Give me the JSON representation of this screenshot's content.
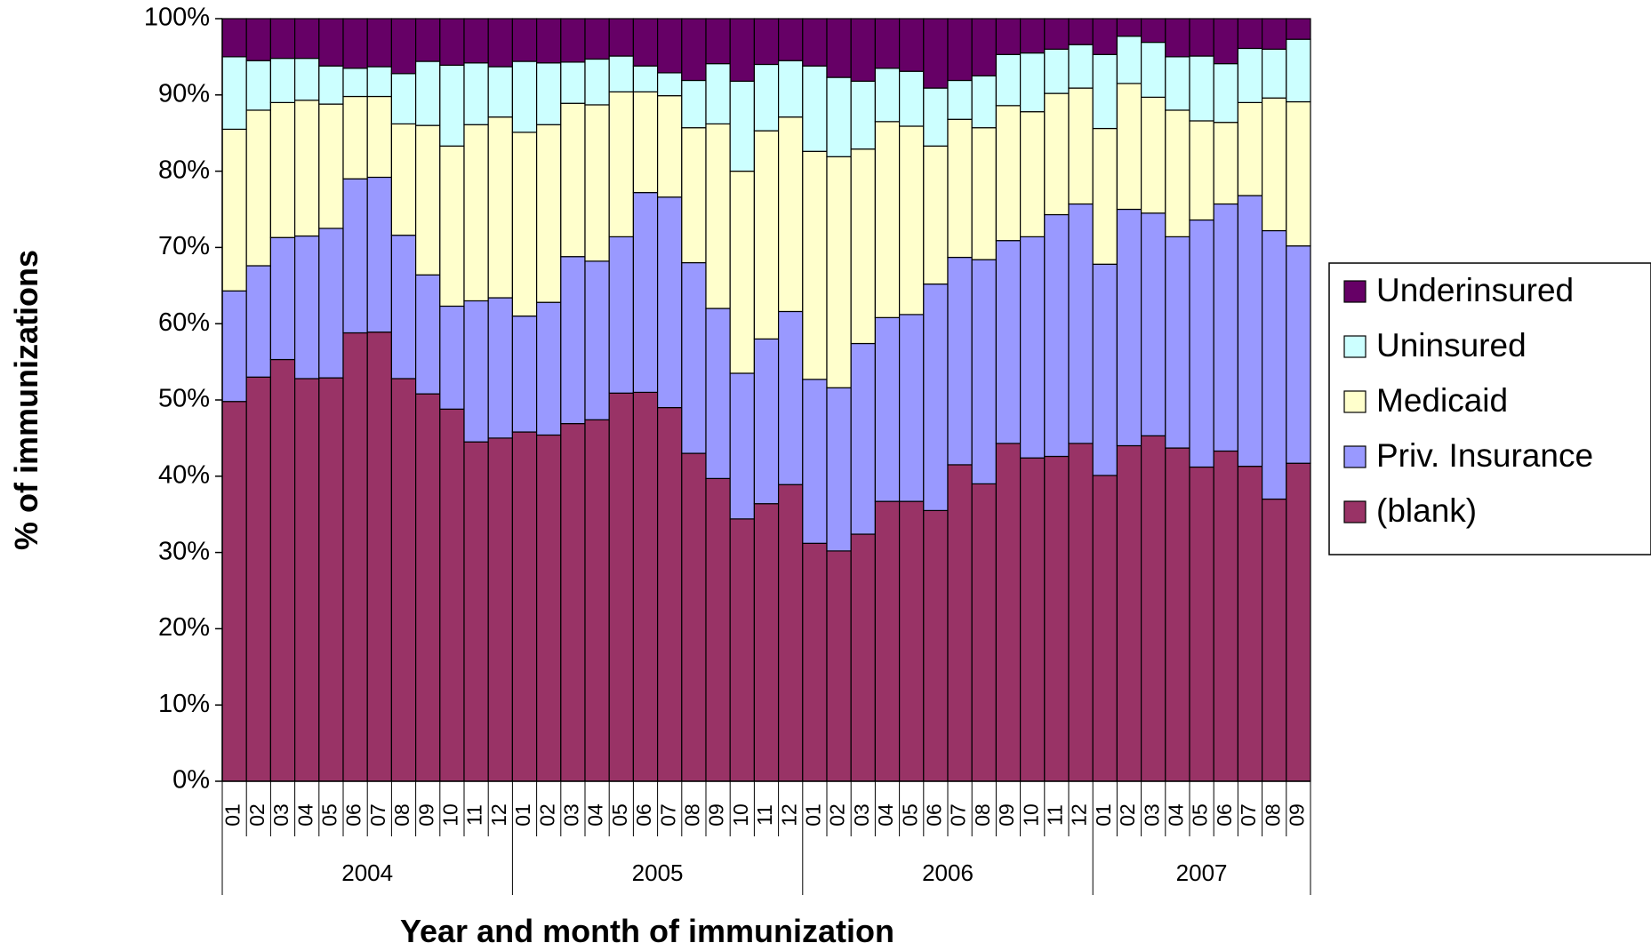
{
  "chart_data": {
    "type": "stacked_bar",
    "y_label": "% of immunizations",
    "x_label": "Year and month of immunization",
    "categories": [
      "01",
      "02",
      "03",
      "04",
      "05",
      "06",
      "07",
      "08",
      "09",
      "10",
      "11",
      "12",
      "01",
      "02",
      "03",
      "04",
      "05",
      "06",
      "07",
      "08",
      "09",
      "10",
      "11",
      "12",
      "01",
      "02",
      "03",
      "04",
      "05",
      "06",
      "07",
      "08",
      "09",
      "10",
      "11",
      "12",
      "01",
      "02",
      "03",
      "04",
      "05",
      "06",
      "07",
      "08",
      "09"
    ],
    "group_labels": [
      "2004",
      "2005",
      "2006",
      "2007"
    ],
    "ylim": [
      0,
      100
    ],
    "yticks": [
      {
        "value": 0,
        "label": "0%"
      },
      {
        "value": 10,
        "label": "10%"
      },
      {
        "value": 20,
        "label": "20%"
      },
      {
        "value": 30,
        "label": "30%"
      },
      {
        "value": 40,
        "label": "40%"
      },
      {
        "value": 50,
        "label": "50%"
      },
      {
        "value": 60,
        "label": "60%"
      },
      {
        "value": 70,
        "label": "70%"
      },
      {
        "value": 80,
        "label": "80%"
      },
      {
        "value": 90,
        "label": "90%"
      },
      {
        "value": 100,
        "label": "100%"
      }
    ],
    "legend_position": "right",
    "series": [
      {
        "name": "(blank)",
        "color": "#993366",
        "values": [
          49.8,
          53,
          55.3,
          52.8,
          52.9,
          58.8,
          58.9,
          52.8,
          50.8,
          48.8,
          44.5,
          45,
          45.8,
          45.4,
          46.9,
          47.4,
          50.9,
          51,
          49,
          43,
          39.7,
          34.4,
          36.4,
          38.9,
          31.2,
          30.2,
          32.4,
          36.7,
          36.7,
          35.5,
          41.5,
          39,
          44.3,
          42.4,
          42.6,
          44.3,
          40.1,
          44,
          45.3,
          43.7,
          41.2,
          43.3,
          41.3,
          37,
          41.7
        ]
      },
      {
        "name": "Priv. Insurance",
        "color": "#9999ff",
        "values": [
          14.5,
          14.6,
          16.0,
          18.7,
          19.6,
          20.2,
          20.3,
          18.8,
          15.6,
          13.5,
          18.5,
          18.4,
          15.2,
          17.4,
          21.9,
          20.8,
          20.5,
          26.2,
          27.6,
          25.0,
          22.3,
          19.1,
          21.6,
          22.7,
          21.5,
          21.4,
          25.0,
          24.1,
          24.5,
          29.7,
          27.2,
          29.4,
          26.6,
          29.0,
          31.7,
          31.4,
          27.7,
          31.0,
          29.2,
          27.7,
          32.4,
          32.4,
          35.5,
          35.2,
          28.5
        ]
      },
      {
        "name": "Medicaid",
        "color": "#ffffcc",
        "values": [
          21.2,
          20.4,
          17.7,
          17.8,
          16.3,
          10.8,
          10.6,
          14.6,
          19.6,
          21.0,
          23.1,
          23.7,
          24.1,
          23.3,
          20.1,
          20.5,
          19.0,
          13.2,
          13.3,
          17.7,
          24.2,
          26.5,
          27.3,
          25.5,
          29.9,
          30.3,
          25.5,
          25.7,
          24.7,
          18.1,
          18.1,
          17.3,
          17.7,
          16.4,
          15.9,
          15.2,
          17.8,
          16.5,
          15.2,
          16.6,
          13.0,
          10.7,
          12.2,
          17.4,
          18.9
        ]
      },
      {
        "name": "Uninsured",
        "color": "#ccffff",
        "values": [
          9.5,
          6.5,
          5.8,
          5.5,
          5.0,
          3.7,
          3.9,
          6.6,
          8.4,
          10.6,
          8.1,
          6.6,
          9.3,
          8.1,
          5.4,
          6.0,
          4.7,
          3.4,
          3.0,
          6.2,
          7.9,
          11.8,
          8.7,
          7.4,
          11.2,
          10.4,
          8.9,
          7.0,
          7.2,
          7.6,
          5.1,
          6.8,
          6.7,
          7.7,
          5.8,
          5.7,
          9.7,
          6.2,
          7.2,
          7.0,
          8.5,
          7.7,
          7.1,
          6.4,
          8.2
        ]
      },
      {
        "name": "Underinsured",
        "color": "#660066",
        "values": [
          5.0,
          5.5,
          5.2,
          5.2,
          6.2,
          6.5,
          6.3,
          7.2,
          5.6,
          6.1,
          5.8,
          6.3,
          5.6,
          5.8,
          5.7,
          5.3,
          4.9,
          6.2,
          7.1,
          8.1,
          5.9,
          8.2,
          6.0,
          5.5,
          6.2,
          7.7,
          8.2,
          6.5,
          6.9,
          9.1,
          8.1,
          7.5,
          4.7,
          4.5,
          4.0,
          3.4,
          4.7,
          2.3,
          3.1,
          5.0,
          4.9,
          5.9,
          3.9,
          4.0,
          2.7
        ]
      }
    ]
  }
}
